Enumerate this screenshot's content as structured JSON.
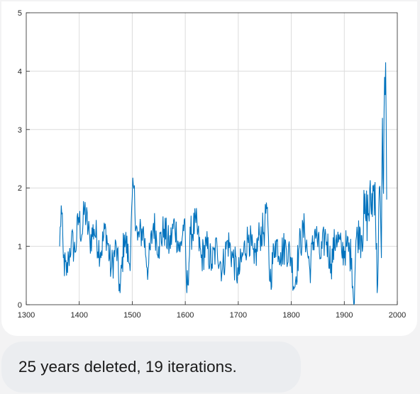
{
  "chart_data": {
    "type": "line",
    "title": "",
    "xlabel": "",
    "ylabel": "",
    "xlim": [
      1300,
      2000
    ],
    "ylim": [
      0,
      5
    ],
    "xticks": [
      "1300",
      "1400",
      "1500",
      "1600",
      "1700",
      "1800",
      "1900",
      "2000"
    ],
    "yticks": [
      "0",
      "1",
      "2",
      "3",
      "4",
      "5"
    ],
    "grid": true,
    "series_color": "#0072bd",
    "series": [
      {
        "x_start": 1363,
        "x_end": 1980,
        "x_step": 1,
        "key_points": [
          [
            1363,
            1.0
          ],
          [
            1366,
            1.7
          ],
          [
            1370,
            0.8
          ],
          [
            1376,
            0.5
          ],
          [
            1380,
            0.8
          ],
          [
            1385,
            1.1
          ],
          [
            1392,
            0.9
          ],
          [
            1399,
            1.5
          ],
          [
            1405,
            1.2
          ],
          [
            1410,
            1.65
          ],
          [
            1420,
            1.1
          ],
          [
            1428,
            1.3
          ],
          [
            1440,
            0.9
          ],
          [
            1450,
            1.3
          ],
          [
            1460,
            0.6
          ],
          [
            1470,
            1.0
          ],
          [
            1477,
            0.2
          ],
          [
            1485,
            1.2
          ],
          [
            1495,
            0.7
          ],
          [
            1502,
            2.05
          ],
          [
            1510,
            1.1
          ],
          [
            1520,
            1.3
          ],
          [
            1530,
            0.6
          ],
          [
            1540,
            1.4
          ],
          [
            1550,
            1.0
          ],
          [
            1560,
            1.3
          ],
          [
            1570,
            1.0
          ],
          [
            1580,
            1.4
          ],
          [
            1590,
            0.9
          ],
          [
            1598,
            1.45
          ],
          [
            1603,
            0.2
          ],
          [
            1610,
            1.2
          ],
          [
            1620,
            1.4
          ],
          [
            1630,
            0.8
          ],
          [
            1640,
            1.0
          ],
          [
            1650,
            0.7
          ],
          [
            1660,
            1.0
          ],
          [
            1670,
            0.6
          ],
          [
            1680,
            1.1
          ],
          [
            1690,
            0.8
          ],
          [
            1700,
            0.5
          ],
          [
            1710,
            0.9
          ],
          [
            1720,
            1.2
          ],
          [
            1730,
            0.7
          ],
          [
            1740,
            1.2
          ],
          [
            1750,
            1.3
          ],
          [
            1753,
            1.75
          ],
          [
            1760,
            0.4
          ],
          [
            1770,
            1.1
          ],
          [
            1780,
            0.9
          ],
          [
            1790,
            1.0
          ],
          [
            1800,
            0.8
          ],
          [
            1806,
            0.3
          ],
          [
            1815,
            1.0
          ],
          [
            1825,
            1.3
          ],
          [
            1835,
            0.6
          ],
          [
            1845,
            1.3
          ],
          [
            1855,
            0.8
          ],
          [
            1865,
            1.2
          ],
          [
            1875,
            0.7
          ],
          [
            1885,
            1.2
          ],
          [
            1895,
            0.9
          ],
          [
            1905,
            1.0
          ],
          [
            1914,
            0.8
          ],
          [
            1918,
            0.0
          ],
          [
            1922,
            1.1
          ],
          [
            1930,
            1.3
          ],
          [
            1940,
            1.5
          ],
          [
            1950,
            1.7
          ],
          [
            1958,
            2.1
          ],
          [
            1962,
            0.2
          ],
          [
            1966,
            2.0
          ],
          [
            1970,
            0.8
          ],
          [
            1972,
            3.2
          ],
          [
            1974,
            1.9
          ],
          [
            1976,
            3.9
          ],
          [
            1978,
            4.15
          ],
          [
            1980,
            1.8
          ]
        ]
      }
    ]
  },
  "message": {
    "text": "25 years deleted, 19 iterations."
  }
}
